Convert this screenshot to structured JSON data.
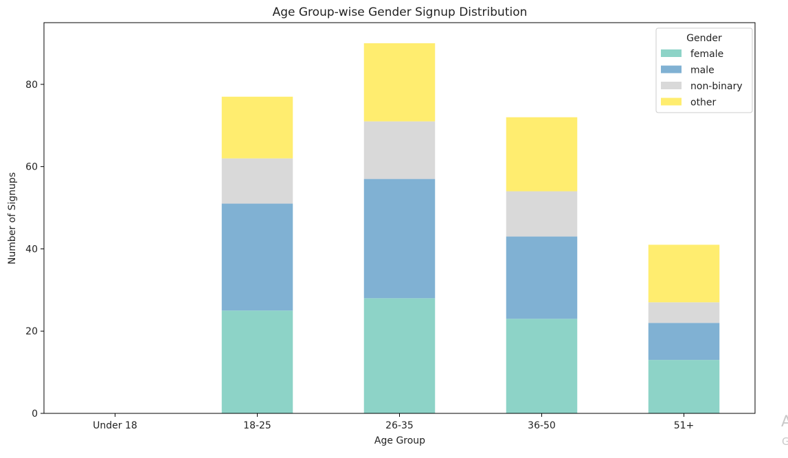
{
  "chart_data": {
    "type": "bar",
    "stacked": true,
    "title": "Age Group-wise Gender Signup Distribution",
    "xlabel": "Age Group",
    "ylabel": "Number of Signups",
    "categories": [
      "Under 18",
      "18-25",
      "26-35",
      "36-50",
      "51+"
    ],
    "ylim": [
      0,
      95
    ],
    "yticks": [
      0,
      20,
      40,
      60,
      80
    ],
    "legend": {
      "title": "Gender",
      "placement": "top-right"
    },
    "series": [
      {
        "name": "female",
        "color": "#8dd3c7",
        "values": [
          0,
          25,
          28,
          23,
          13
        ]
      },
      {
        "name": "male",
        "color": "#80b1d3",
        "values": [
          0,
          26,
          29,
          20,
          9
        ]
      },
      {
        "name": "non-binary",
        "color": "#d9d9d9",
        "values": [
          0,
          11,
          14,
          11,
          5
        ]
      },
      {
        "name": "other",
        "color": "#ffed6f",
        "values": [
          0,
          15,
          19,
          18,
          14
        ]
      }
    ]
  },
  "watermark": {
    "line1": "A",
    "line2": "G"
  }
}
